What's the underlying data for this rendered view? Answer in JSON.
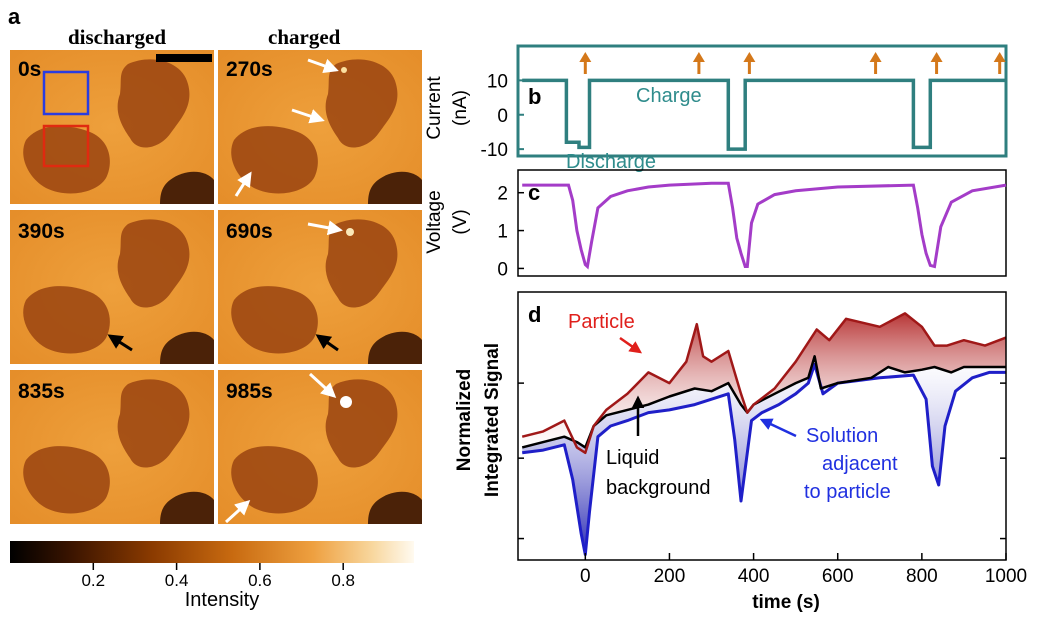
{
  "panel_a": {
    "letter": "a",
    "col_left": "discharged",
    "col_right": "charged",
    "frames": [
      "0s",
      "270s",
      "390s",
      "690s",
      "835s",
      "985s"
    ],
    "colorbar": {
      "ticks": [
        "0.2",
        "0.4",
        "0.6",
        "0.8"
      ],
      "tick_values": [
        0.2,
        0.4,
        0.6,
        0.8
      ],
      "range": [
        0,
        0.97
      ],
      "title": "Intensity"
    },
    "roi_colors": {
      "particle": "#e02a10",
      "solution": "#2a3ce0"
    }
  },
  "colors": {
    "current": "#2f7f7f",
    "voltage": "#a43cc8",
    "particle": "#a01818",
    "background": "#000000",
    "solution": "#1f1fc8",
    "arrow_orange": "#d4781a",
    "particle_label": "#e0201c",
    "solution_label": "#2030e0",
    "current_label": "#2f8c8c"
  },
  "chart_data": [
    {
      "panel": "b",
      "type": "line",
      "ylabel": "Current\n(nA)",
      "ylim": [
        -12,
        20
      ],
      "yticks": [
        "10",
        "0",
        "-10"
      ],
      "ytick_values": [
        10,
        0,
        -10
      ],
      "xlim": [
        -160,
        1000
      ],
      "x": [
        -150,
        -45,
        -45,
        -15,
        -15,
        10,
        10,
        340,
        340,
        380,
        380,
        780,
        780,
        820,
        820,
        1000
      ],
      "values": [
        10,
        10,
        -8,
        -8,
        -9.5,
        -9.5,
        10,
        10,
        -10,
        -10,
        10,
        10,
        -9.5,
        -9.5,
        10,
        10
      ],
      "labels": {
        "charge": "Charge",
        "discharge": "Discharge"
      },
      "acquisition_markers": [
        0,
        270,
        390,
        690,
        835,
        985
      ]
    },
    {
      "panel": "c",
      "type": "line",
      "ylabel": "Voltage\n(V)",
      "ylim": [
        -0.2,
        2.6
      ],
      "yticks": [
        "2",
        "1",
        "0"
      ],
      "ytick_values": [
        2,
        1,
        0
      ],
      "xlim": [
        -160,
        1000
      ],
      "x": [
        -150,
        -40,
        -30,
        -20,
        -10,
        0,
        5,
        15,
        30,
        60,
        100,
        150,
        200,
        300,
        340,
        350,
        360,
        370,
        380,
        385,
        395,
        410,
        450,
        500,
        600,
        780,
        790,
        800,
        810,
        820,
        830,
        845,
        870,
        920,
        1000
      ],
      "values": [
        2.2,
        2.2,
        1.8,
        1.0,
        0.5,
        0.1,
        0.05,
        0.7,
        1.6,
        1.9,
        2.05,
        2.15,
        2.2,
        2.25,
        2.25,
        1.6,
        0.8,
        0.4,
        0.05,
        0.05,
        1.2,
        1.7,
        1.95,
        2.05,
        2.15,
        2.2,
        1.6,
        0.9,
        0.4,
        0.08,
        0.05,
        1.1,
        1.75,
        2.05,
        2.2
      ]
    },
    {
      "panel": "d",
      "type": "area",
      "xlabel": "time (s)",
      "ylabel": "Normalized\nIntegrated Signal",
      "xlim": [
        -160,
        1000
      ],
      "ylim": [
        0,
        1
      ],
      "xticks": [
        0,
        200,
        400,
        600,
        800,
        1000
      ],
      "xtick_labels": [
        "0",
        "200",
        "400",
        "600",
        "800",
        "1000"
      ],
      "ytick_values": [
        0.08,
        0.38,
        0.66
      ],
      "series": [
        {
          "name": "Particle",
          "x": [
            -150,
            -100,
            -50,
            -20,
            0,
            20,
            50,
            100,
            150,
            200,
            240,
            265,
            280,
            300,
            340,
            370,
            385,
            400,
            450,
            500,
            550,
            580,
            620,
            700,
            760,
            800,
            830,
            860,
            900,
            950,
            1000
          ],
          "y": [
            0.46,
            0.48,
            0.52,
            0.42,
            0.4,
            0.5,
            0.56,
            0.62,
            0.7,
            0.66,
            0.74,
            0.88,
            0.76,
            0.74,
            0.78,
            0.62,
            0.55,
            0.58,
            0.64,
            0.74,
            0.86,
            0.82,
            0.9,
            0.87,
            0.92,
            0.87,
            0.8,
            0.8,
            0.82,
            0.8,
            0.83
          ]
        },
        {
          "name": "Liquid background",
          "x": [
            -150,
            -100,
            -50,
            -20,
            0,
            20,
            50,
            100,
            150,
            200,
            260,
            300,
            340,
            370,
            385,
            400,
            450,
            500,
            530,
            545,
            560,
            600,
            680,
            720,
            760,
            800,
            830,
            870,
            900,
            950,
            1000
          ],
          "y": [
            0.42,
            0.44,
            0.46,
            0.44,
            0.42,
            0.5,
            0.54,
            0.56,
            0.58,
            0.61,
            0.64,
            0.63,
            0.66,
            0.58,
            0.55,
            0.58,
            0.62,
            0.66,
            0.68,
            0.76,
            0.64,
            0.66,
            0.68,
            0.72,
            0.7,
            0.71,
            0.72,
            0.7,
            0.72,
            0.72,
            0.72
          ]
        },
        {
          "name": "Solution adjacent to particle",
          "x": [
            -150,
            -100,
            -50,
            -30,
            -10,
            0,
            10,
            30,
            60,
            100,
            150,
            200,
            260,
            300,
            340,
            355,
            370,
            380,
            395,
            420,
            460,
            500,
            530,
            545,
            565,
            600,
            700,
            780,
            810,
            825,
            840,
            855,
            880,
            920,
            960,
            1000
          ],
          "y": [
            0.4,
            0.41,
            0.43,
            0.3,
            0.1,
            0.02,
            0.18,
            0.46,
            0.5,
            0.52,
            0.55,
            0.56,
            0.58,
            0.6,
            0.62,
            0.45,
            0.22,
            0.34,
            0.52,
            0.55,
            0.58,
            0.62,
            0.66,
            0.73,
            0.62,
            0.66,
            0.68,
            0.69,
            0.6,
            0.35,
            0.28,
            0.5,
            0.63,
            0.68,
            0.7,
            0.7
          ]
        }
      ],
      "annotations": {
        "particle": "Particle",
        "background": [
          "Liquid",
          "background"
        ],
        "solution": [
          "Solution",
          "adjacent",
          "to particle"
        ]
      }
    }
  ]
}
